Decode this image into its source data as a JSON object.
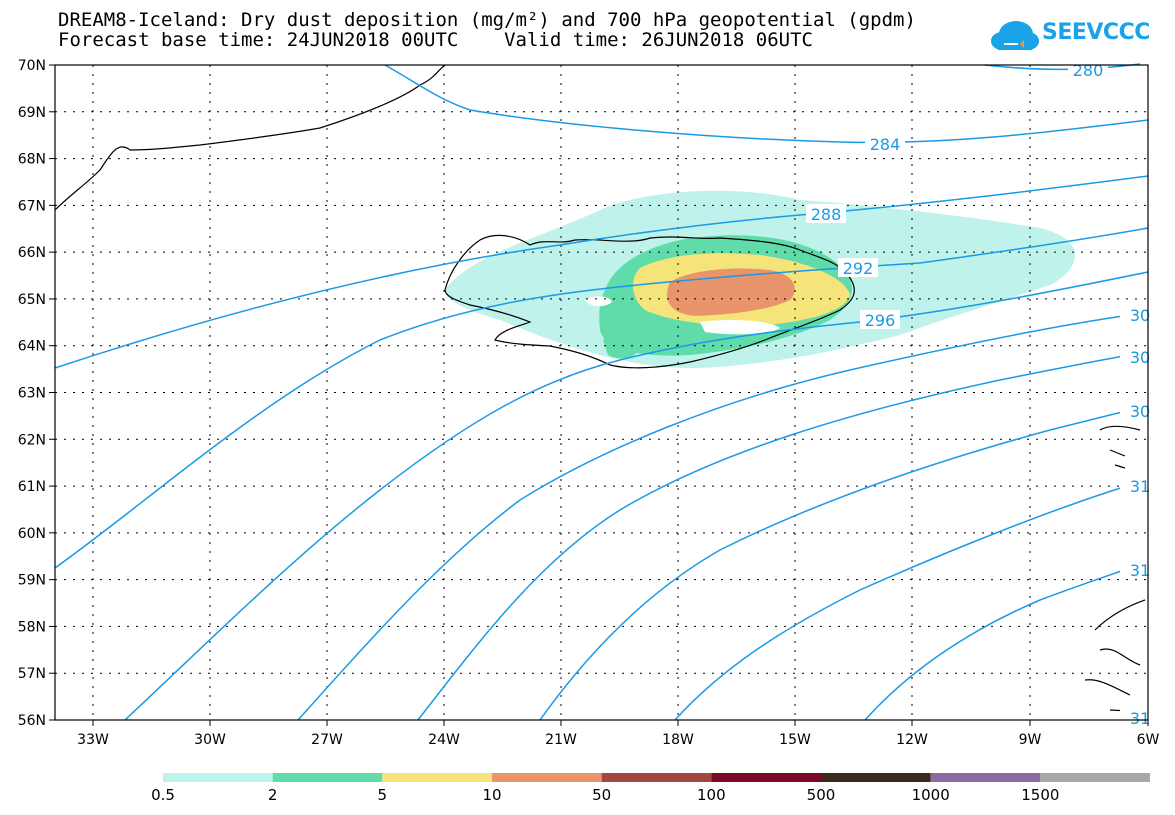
{
  "title": {
    "line1": "DREAM8-Iceland: Dry dust deposition (mg/m²) and 700 hPa geopotential (gpdm)",
    "line2": "Forecast base time: 24JUN2018 00UTC    Valid time: 26JUN2018 06UTC"
  },
  "logo": {
    "text": "SEEVCCC",
    "color": "#1aa3e8"
  },
  "map": {
    "lat_labels": [
      "70N",
      "69N",
      "68N",
      "67N",
      "66N",
      "65N",
      "64N",
      "63N",
      "62N",
      "61N",
      "60N",
      "59N",
      "58N",
      "57N",
      "56N"
    ],
    "lon_labels": [
      "33W",
      "30W",
      "27W",
      "24W",
      "21W",
      "18W",
      "15W",
      "12W",
      "9W",
      "6W"
    ],
    "contour_color": "#1a9ae6",
    "contour_labels": [
      "280",
      "284",
      "288",
      "292",
      "296",
      "30",
      "30",
      "30",
      "31",
      "31",
      "31"
    ]
  },
  "legend": {
    "labels": [
      "0.5",
      "2",
      "5",
      "10",
      "50",
      "100",
      "500",
      "1000",
      "1500"
    ],
    "colors": [
      "#bff2ea",
      "#5fdcaa",
      "#f5e47a",
      "#e9946a",
      "#a0473f",
      "#7a0a28",
      "#3d2a1c",
      "#8a6aa0",
      "#a8a8a8"
    ]
  }
}
